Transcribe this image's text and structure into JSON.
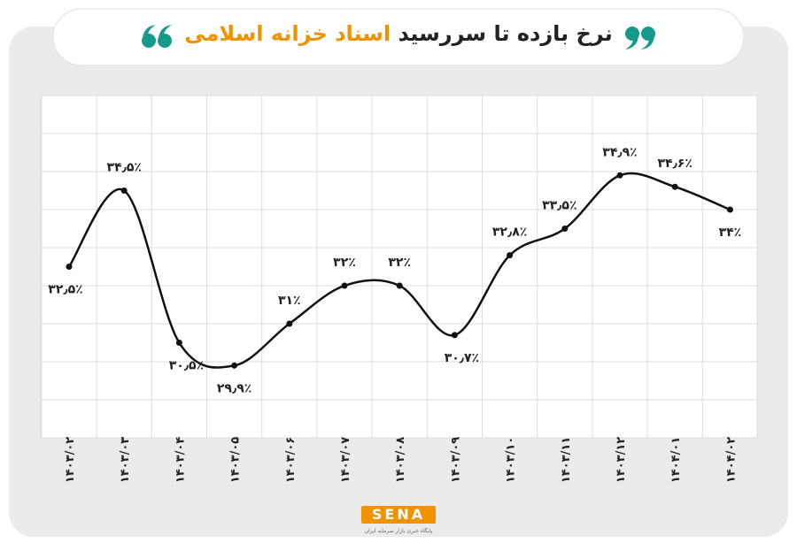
{
  "chart_data": {
    "type": "line",
    "title": "نرخ بازده تا سررسید",
    "title_highlight": "اسناد خزانه اسلامی",
    "categories": [
      "۱۴۰۳/۰۲",
      "۱۴۰۳/۰۳",
      "۱۴۰۳/۰۴",
      "۱۴۰۳/۰۵",
      "۱۴۰۳/۰۶",
      "۱۴۰۳/۰۷",
      "۱۴۰۳/۰۸",
      "۱۴۰۳/۰۹",
      "۱۴۰۳/۱۰",
      "۱۴۰۳/۱۱",
      "۱۴۰۳/۱۲",
      "۱۴۰۴/۰۱",
      "۱۴۰۴/۰۲"
    ],
    "values": [
      32.5,
      34.5,
      30.5,
      29.9,
      31,
      32,
      32,
      30.7,
      32.8,
      33.5,
      34.9,
      34.6,
      34
    ],
    "value_labels": [
      "۳۲٫۵٪",
      "۳۴٫۵٪",
      "۳۰٫۵٪",
      "۲۹٫۹٪",
      "۳۱٪",
      "۳۲٪",
      "۳۲٪",
      "۳۰٫۷٪",
      "۳۲٫۸٪",
      "۳۳٫۵٪",
      "۳۴٫۹٪",
      "۳۴٫۶٪",
      "۳۴٪"
    ],
    "color": "#111111",
    "ylim": [
      28,
      37
    ],
    "grid": true
  },
  "logo": {
    "brand": "SENA",
    "tagline": "پایگاه خبری بازار سرمایه ایران"
  }
}
